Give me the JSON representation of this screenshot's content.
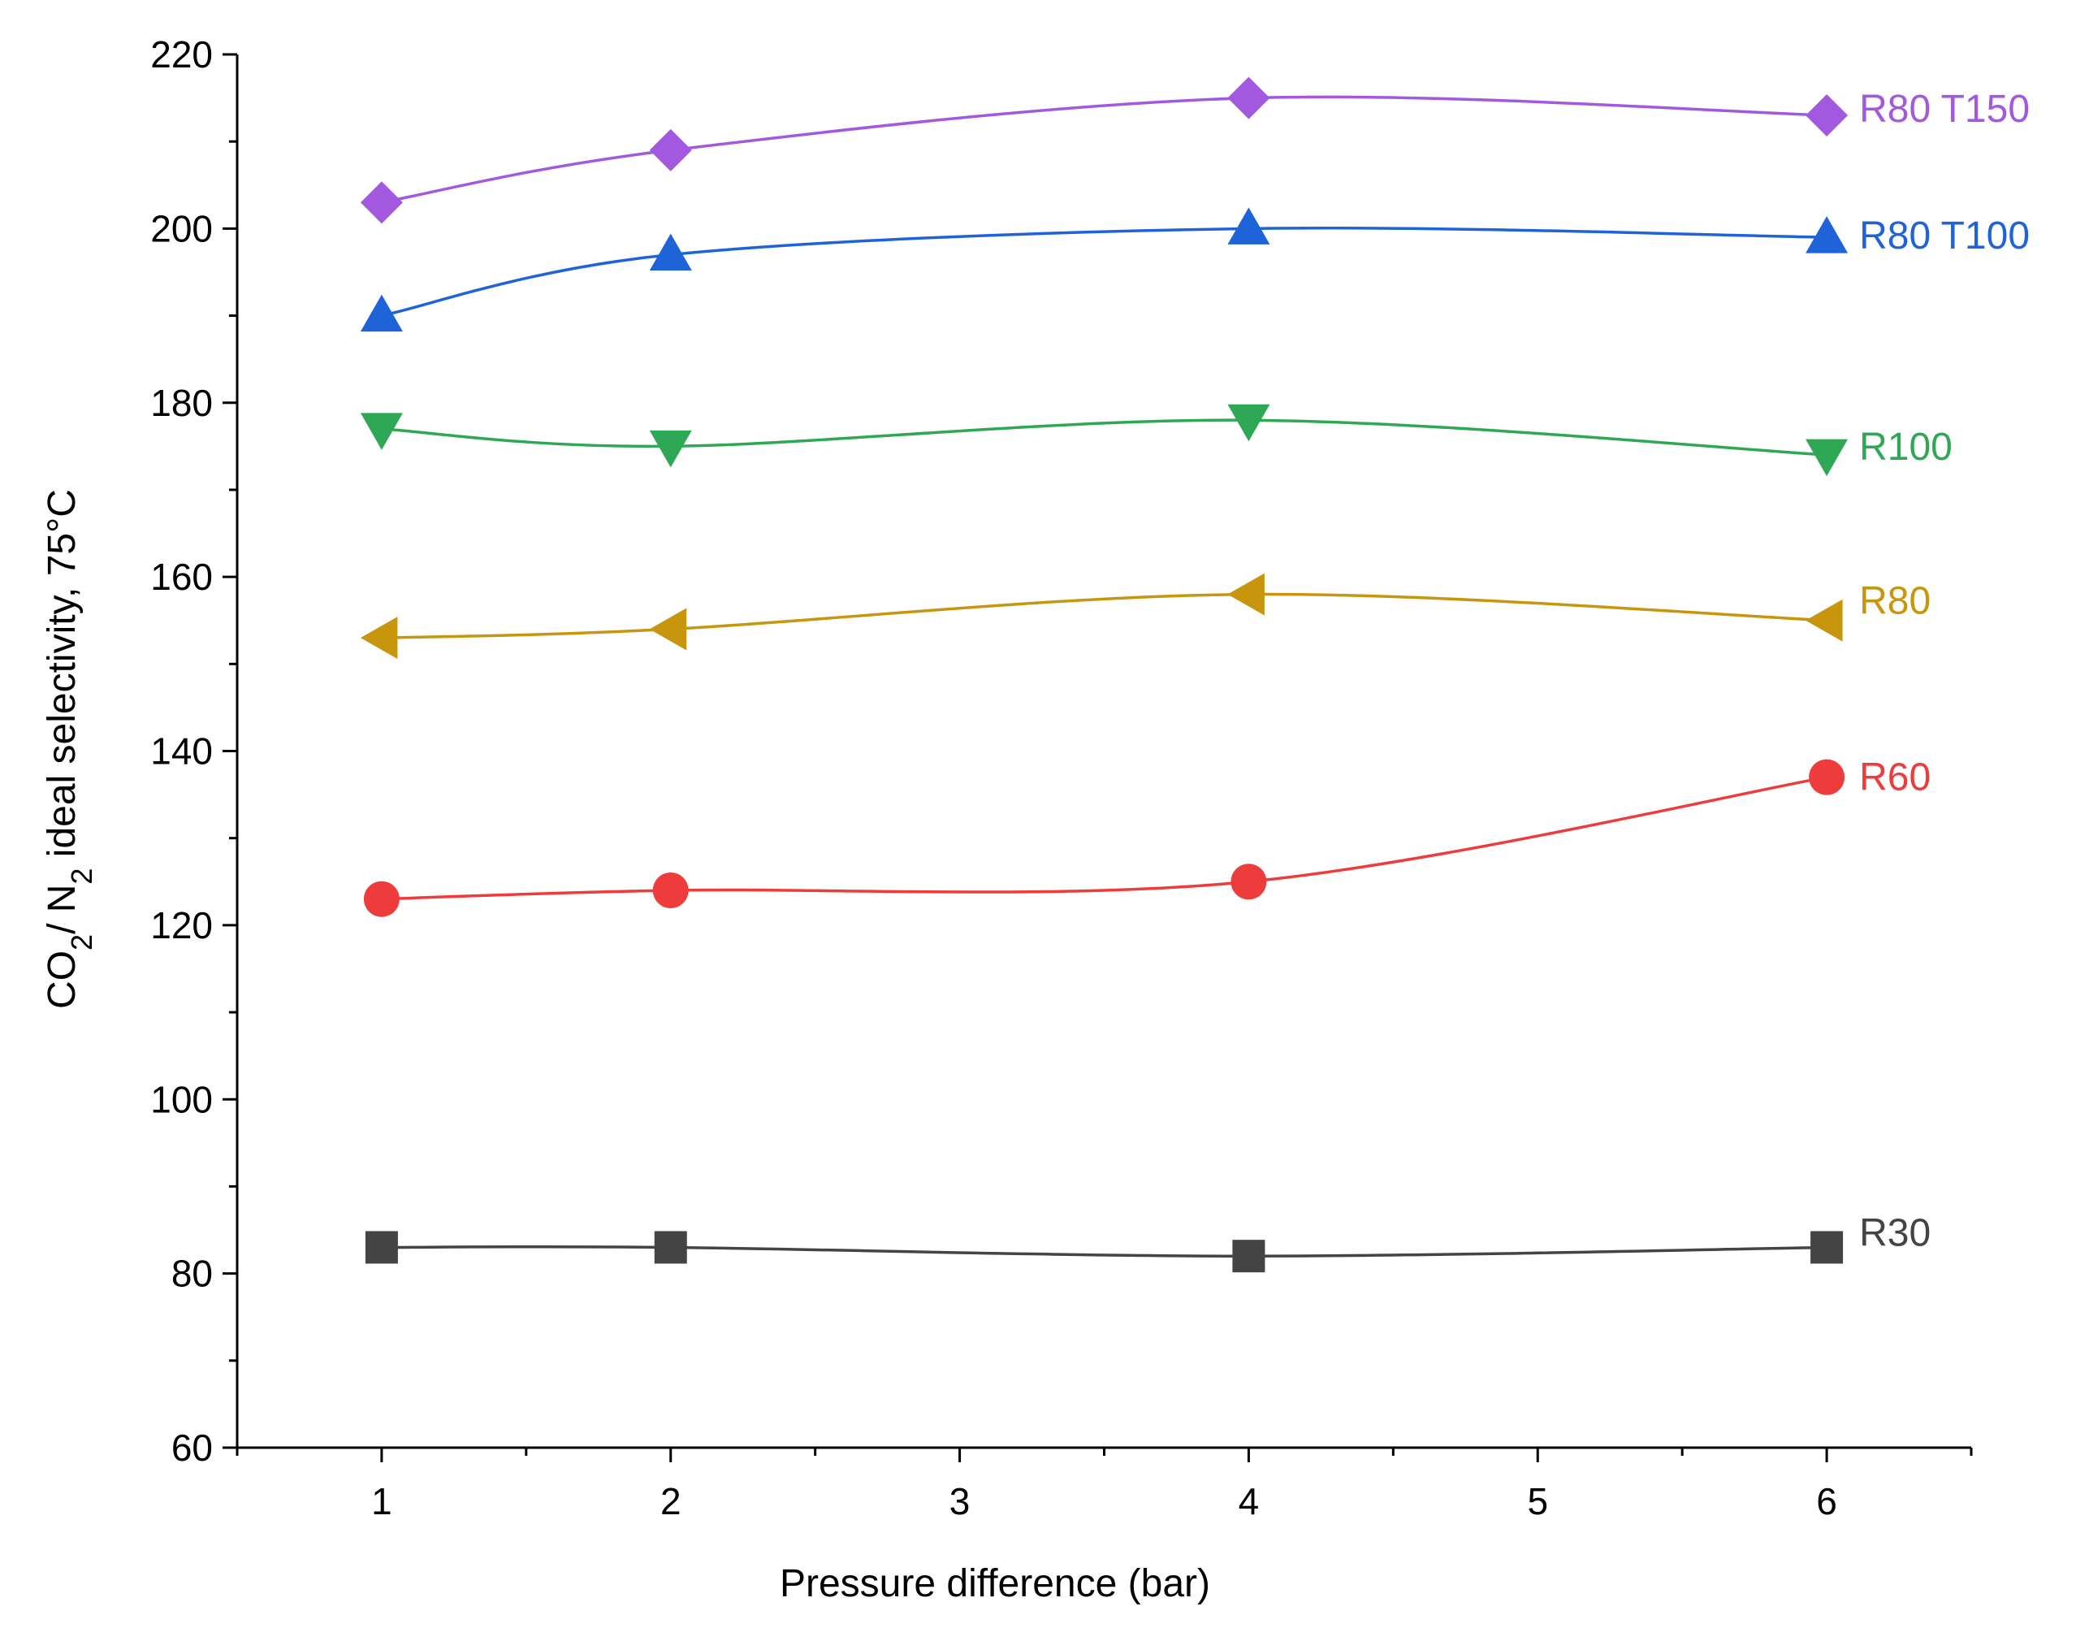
{
  "chart_data": {
    "type": "line",
    "title": "",
    "xlabel": "Pressure difference (bar)",
    "ylabel": {
      "prefix": "CO",
      "sub1": "2",
      "middle": "/ N",
      "sub2": "2",
      "suffix": " ideal selectivity, 75°C"
    },
    "xlim": [
      0.5,
      6.5
    ],
    "ylim": [
      60,
      220
    ],
    "x_ticks": [
      1,
      2,
      3,
      4,
      5,
      6
    ],
    "x_tick_labels": [
      "1",
      "2",
      "3",
      "4",
      "5",
      "6"
    ],
    "y_ticks": [
      60,
      80,
      100,
      120,
      140,
      160,
      180,
      200,
      220
    ],
    "y_tick_labels": [
      "60",
      "80",
      "100",
      "120",
      "140",
      "160",
      "180",
      "200",
      "220"
    ],
    "x": [
      1,
      2,
      4,
      6
    ],
    "grid": false,
    "legend": "inline labels at right end of each series",
    "series": [
      {
        "name": "R30",
        "values": [
          83,
          83,
          82,
          83
        ],
        "color": "#444444",
        "marker": "square"
      },
      {
        "name": "R60",
        "values": [
          123,
          124,
          125,
          137
        ],
        "color": "#ee3b3b",
        "marker": "circle"
      },
      {
        "name": "R80",
        "values": [
          153,
          154,
          158,
          155
        ],
        "color": "#c8960c",
        "marker": "triangle-left"
      },
      {
        "name": "R100",
        "values": [
          177,
          175,
          178,
          174
        ],
        "color": "#2ea855",
        "marker": "triangle-down"
      },
      {
        "name": "R80 T100",
        "values": [
          190,
          197,
          200,
          199
        ],
        "color": "#1e64d8",
        "marker": "triangle-up"
      },
      {
        "name": "R80 T150",
        "values": [
          203,
          209,
          215,
          213
        ],
        "color": "#a259e0",
        "marker": "diamond"
      }
    ]
  }
}
